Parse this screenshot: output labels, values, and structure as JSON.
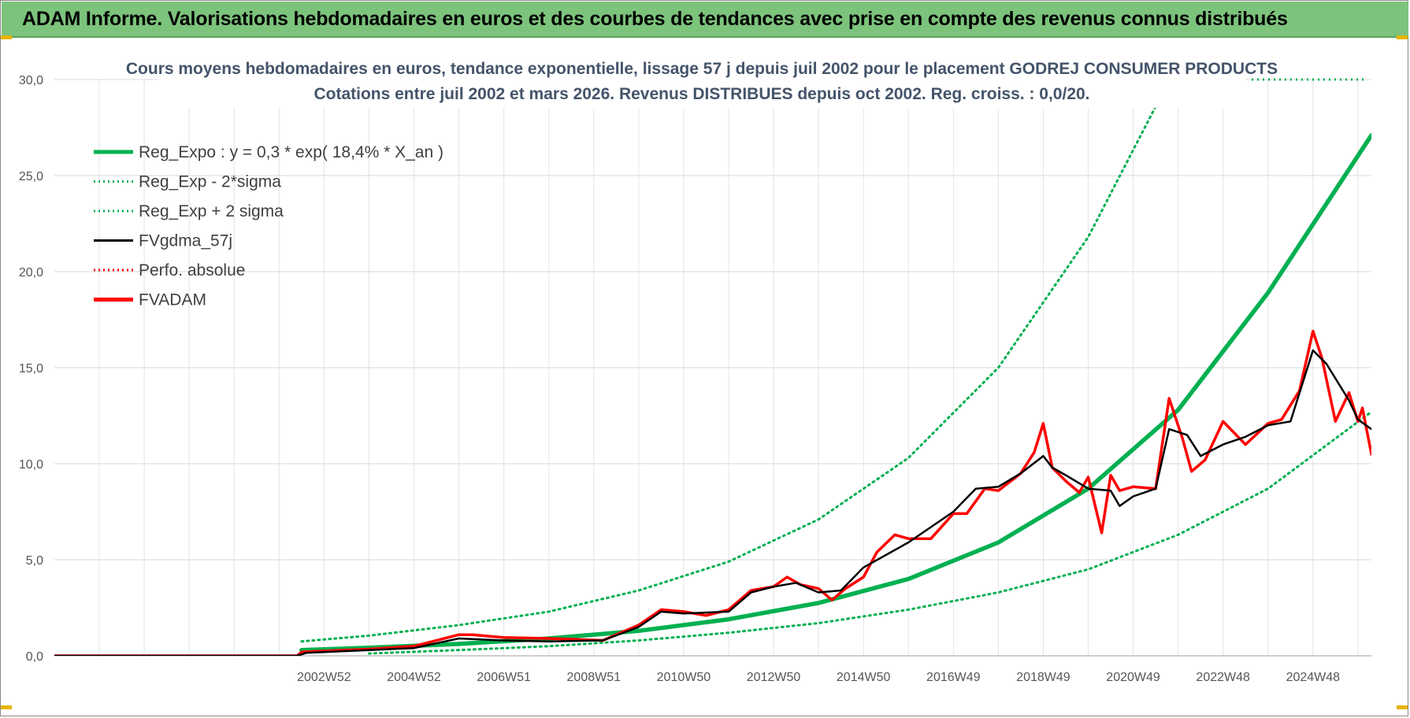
{
  "header": {
    "title": "ADAM Informe. Valorisations hebdomadaires en euros et des courbes de tendances avec prise en compte des revenus connus distribués"
  },
  "chart_data": {
    "type": "line",
    "title_line1": "Cours moyens hebdomadaires en euros, tendance exponentielle, lissage 57 j depuis juil 2002 pour le placement GODREJ CONSUMER PRODUCTS",
    "title_line2": "Cotations entre juil 2002 et mars 2026. Revenus DISTRIBUES depuis oct 2002.  Reg. croiss. : 0,0/20.",
    "xlabel": "",
    "ylabel": "",
    "ylim": [
      0,
      30
    ],
    "xlim": [
      1997.0,
      2026.3
    ],
    "yticks": [
      "0,0",
      "5,0",
      "10,0",
      "15,0",
      "20,0",
      "25,0",
      "30,0"
    ],
    "xticks": [
      {
        "label": "2002W52",
        "x": 2003.0
      },
      {
        "label": "2004W52",
        "x": 2005.0
      },
      {
        "label": "2006W51",
        "x": 2007.0
      },
      {
        "label": "2008W51",
        "x": 2009.0
      },
      {
        "label": "2010W50",
        "x": 2011.0
      },
      {
        "label": "2012W50",
        "x": 2013.0
      },
      {
        "label": "2014W50",
        "x": 2015.0
      },
      {
        "label": "2016W49",
        "x": 2017.0
      },
      {
        "label": "2018W49",
        "x": 2019.0
      },
      {
        "label": "2020W49",
        "x": 2021.0
      },
      {
        "label": "2022W48",
        "x": 2023.0
      },
      {
        "label": "2024W48",
        "x": 2025.0
      }
    ],
    "grid": true,
    "legend_position": "top-left",
    "legend": [
      {
        "label": "Reg_Expo : y = 0,3 * exp( 18,4% *  X_an )",
        "color": "#00b050",
        "style": "solid-thick"
      },
      {
        "label": "Reg_Exp - 2*sigma",
        "color": "#00b050",
        "style": "dotted"
      },
      {
        "label": "Reg_Exp + 2 sigma",
        "color": "#00b050",
        "style": "dotted"
      },
      {
        "label": "FVgdma_57j",
        "color": "#000000",
        "style": "solid"
      },
      {
        "label": "Perfo. absolue",
        "color": "#ff0000",
        "style": "dotted"
      },
      {
        "label": "FVADAM",
        "color": "#ff0000",
        "style": "solid-thick"
      }
    ],
    "series": [
      {
        "name": "Reg_Expo",
        "color": "#00b050",
        "x": [
          2002.5,
          2004,
          2006,
          2008,
          2010,
          2012,
          2014,
          2016,
          2018,
          2020,
          2022,
          2024,
          2026.3
        ],
        "values": [
          0.3,
          0.42,
          0.62,
          0.9,
          1.3,
          1.9,
          2.75,
          4.0,
          5.9,
          8.7,
          12.8,
          18.9,
          27.1
        ]
      },
      {
        "name": "Reg_Exp - 2*sigma",
        "color": "#00b050",
        "x": [
          2004,
          2006,
          2008,
          2010,
          2012,
          2014,
          2016,
          2018,
          2020,
          2022,
          2024,
          2026.3
        ],
        "values": [
          0.12,
          0.3,
          0.5,
          0.8,
          1.2,
          1.7,
          2.4,
          3.3,
          4.5,
          6.3,
          8.7,
          12.7
        ]
      },
      {
        "name": "Reg_Exp + 2 sigma",
        "color": "#00b050",
        "x": [
          2002.5,
          2004,
          2006,
          2008,
          2010,
          2012,
          2014,
          2016,
          2018,
          2020,
          2021.5
        ],
        "values": [
          0.75,
          1.05,
          1.6,
          2.3,
          3.4,
          4.9,
          7.1,
          10.3,
          15.0,
          21.8,
          28.6
        ]
      },
      {
        "name": "FVgdma_57j",
        "color": "#000000",
        "x": [
          1997.0,
          2002.4,
          2002.6,
          2004,
          2005,
          2006,
          2006.5,
          2007,
          2008,
          2009.2,
          2010,
          2010.5,
          2011,
          2012,
          2012.5,
          2013,
          2013.5,
          2014,
          2014.5,
          2015,
          2016,
          2016.5,
          2017,
          2017.5,
          2018,
          2018.5,
          2019,
          2019.2,
          2019.5,
          2020,
          2020.5,
          2020.7,
          2021,
          2021.5,
          2021.8,
          2022.2,
          2022.5,
          2023,
          2023.5,
          2024,
          2024.5,
          2025,
          2025.3,
          2025.8,
          2026.0,
          2026.3
        ],
        "values": [
          0,
          0,
          0.15,
          0.3,
          0.4,
          0.9,
          0.85,
          0.8,
          0.75,
          0.8,
          1.5,
          2.3,
          2.2,
          2.3,
          3.3,
          3.6,
          3.8,
          3.3,
          3.4,
          4.6,
          5.9,
          6.7,
          7.5,
          8.7,
          8.8,
          9.5,
          10.4,
          9.8,
          9.4,
          8.7,
          8.6,
          7.8,
          8.3,
          8.7,
          11.8,
          11.5,
          10.4,
          11.0,
          11.4,
          12.0,
          12.2,
          15.9,
          15.2,
          13.3,
          12.3,
          11.8
        ]
      },
      {
        "name": "FVADAM",
        "color": "#ff0000",
        "x": [
          1997.0,
          2002.4,
          2002.5,
          2004,
          2005,
          2006,
          2006.3,
          2007,
          2008,
          2009.2,
          2010,
          2010.5,
          2011,
          2011.5,
          2012,
          2012.5,
          2013,
          2013.3,
          2013.6,
          2014,
          2014.3,
          2014.6,
          2015,
          2015.3,
          2015.7,
          2016,
          2016.5,
          2017,
          2017.3,
          2017.7,
          2018,
          2018.5,
          2018.8,
          2019,
          2019.2,
          2019.5,
          2019.8,
          2020,
          2020.3,
          2020.5,
          2020.7,
          2021,
          2021.5,
          2021.8,
          2022.1,
          2022.3,
          2022.6,
          2023,
          2023.5,
          2024,
          2024.3,
          2024.7,
          2025.0,
          2025.2,
          2025.5,
          2025.8,
          2026.0,
          2026.1,
          2026.3
        ],
        "values": [
          0,
          0,
          0.2,
          0.35,
          0.5,
          1.1,
          1.1,
          0.95,
          0.9,
          0.8,
          1.6,
          2.4,
          2.3,
          2.1,
          2.4,
          3.4,
          3.6,
          4.1,
          3.7,
          3.5,
          2.9,
          3.5,
          4.1,
          5.4,
          6.3,
          6.1,
          6.1,
          7.4,
          7.4,
          8.7,
          8.6,
          9.5,
          10.6,
          12.1,
          9.8,
          9.1,
          8.5,
          9.3,
          6.4,
          9.4,
          8.6,
          8.8,
          8.7,
          13.4,
          11.3,
          9.6,
          10.2,
          12.2,
          11.0,
          12.1,
          12.3,
          13.8,
          16.9,
          15.5,
          12.2,
          13.7,
          12.2,
          12.9,
          10.5
        ]
      }
    ]
  }
}
